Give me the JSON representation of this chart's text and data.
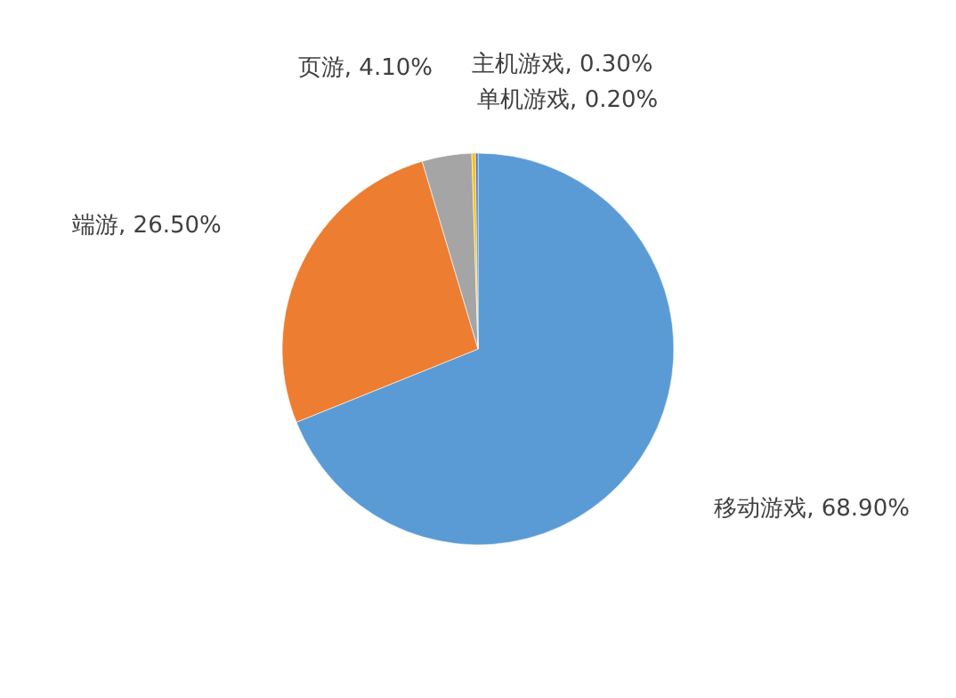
{
  "chart_data": {
    "type": "pie",
    "categories": [
      "移动游戏",
      "端游",
      "页游",
      "主机游戏",
      "单机游戏"
    ],
    "values": [
      68.9,
      26.5,
      4.1,
      0.3,
      0.2
    ],
    "value_labels": [
      "68.90%",
      "26.50%",
      "4.10%",
      "0.30%",
      "0.20%"
    ],
    "colors": [
      "#5b9bd5",
      "#ed7d31",
      "#a5a5a5",
      "#ffc000",
      "#4472c4"
    ]
  }
}
